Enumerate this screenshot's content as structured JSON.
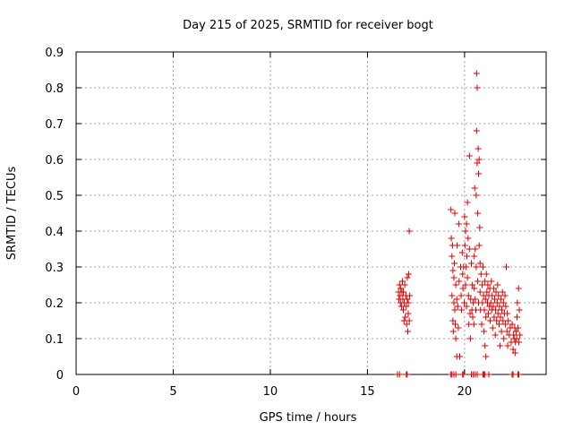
{
  "chart_data": {
    "type": "scatter",
    "title": "Day 215 of 2025, SRMTID for receiver bogt",
    "xlabel": "GPS time / hours",
    "ylabel": "SRMTID / TECUs",
    "xlim": [
      0,
      24.2
    ],
    "ylim": [
      0,
      0.9
    ],
    "xticks": [
      0,
      5,
      10,
      15,
      20
    ],
    "xtick_labels": [
      "0",
      "5",
      "10",
      "15",
      "20"
    ],
    "yticks": [
      0,
      0.1,
      0.2,
      0.3,
      0.4,
      0.5,
      0.6,
      0.7,
      0.8,
      0.9
    ],
    "ytick_labels": [
      "0",
      "0.1",
      "0.2",
      "0.3",
      "0.4",
      "0.5",
      "0.6",
      "0.7",
      "0.8",
      "0.9"
    ],
    "grid": true,
    "marker": "+",
    "color": "#e00000",
    "series": [
      {
        "name": "SRMTID",
        "points": [
          [
            16.55,
            0.0
          ],
          [
            16.65,
            0.0
          ],
          [
            17.0,
            0.0
          ],
          [
            17.05,
            0.0
          ],
          [
            19.3,
            0.0
          ],
          [
            19.35,
            0.0
          ],
          [
            19.45,
            0.0
          ],
          [
            19.55,
            0.0
          ],
          [
            19.9,
            0.0
          ],
          [
            19.95,
            0.0
          ],
          [
            20.35,
            0.0
          ],
          [
            20.45,
            0.0
          ],
          [
            20.55,
            0.0
          ],
          [
            20.65,
            0.0
          ],
          [
            20.95,
            0.0
          ],
          [
            21.0,
            0.0
          ],
          [
            21.05,
            0.0
          ],
          [
            21.25,
            0.0
          ],
          [
            22.45,
            0.0
          ],
          [
            22.5,
            0.0
          ],
          [
            22.75,
            0.0
          ],
          [
            22.8,
            0.0
          ],
          [
            16.6,
            0.23
          ],
          [
            16.62,
            0.21
          ],
          [
            16.65,
            0.25
          ],
          [
            16.68,
            0.22
          ],
          [
            16.7,
            0.2
          ],
          [
            16.72,
            0.24
          ],
          [
            16.75,
            0.19
          ],
          [
            16.78,
            0.23
          ],
          [
            16.8,
            0.26
          ],
          [
            16.82,
            0.21
          ],
          [
            16.85,
            0.18
          ],
          [
            16.85,
            0.23
          ],
          [
            16.88,
            0.15
          ],
          [
            16.9,
            0.2
          ],
          [
            16.92,
            0.25
          ],
          [
            16.95,
            0.16
          ],
          [
            16.98,
            0.22
          ],
          [
            17.0,
            0.19
          ],
          [
            17.02,
            0.14
          ],
          [
            17.05,
            0.21
          ],
          [
            17.05,
            0.27
          ],
          [
            17.08,
            0.12
          ],
          [
            17.1,
            0.17
          ],
          [
            17.1,
            0.2
          ],
          [
            17.12,
            0.28
          ],
          [
            17.15,
            0.15
          ],
          [
            17.15,
            0.4
          ],
          [
            17.18,
            0.22
          ],
          [
            19.3,
            0.46
          ],
          [
            19.32,
            0.38
          ],
          [
            19.35,
            0.33
          ],
          [
            19.35,
            0.22
          ],
          [
            19.38,
            0.36
          ],
          [
            19.4,
            0.29
          ],
          [
            19.4,
            0.15
          ],
          [
            19.42,
            0.12
          ],
          [
            19.45,
            0.27
          ],
          [
            19.45,
            0.2
          ],
          [
            19.48,
            0.31
          ],
          [
            19.5,
            0.18
          ],
          [
            19.5,
            0.45
          ],
          [
            19.52,
            0.14
          ],
          [
            19.55,
            0.25
          ],
          [
            19.55,
            0.1
          ],
          [
            19.6,
            0.05
          ],
          [
            19.6,
            0.21
          ],
          [
            19.62,
            0.36
          ],
          [
            19.65,
            0.19
          ],
          [
            19.68,
            0.13
          ],
          [
            19.7,
            0.42
          ],
          [
            19.72,
            0.26
          ],
          [
            19.75,
            0.05
          ],
          [
            19.8,
            0.3
          ],
          [
            19.82,
            0.22
          ],
          [
            19.85,
            0.18
          ],
          [
            19.88,
            0.34
          ],
          [
            19.9,
            0.28
          ],
          [
            19.92,
            0.24
          ],
          [
            19.95,
            0.3
          ],
          [
            19.98,
            0.2
          ],
          [
            20.0,
            0.44
          ],
          [
            20.02,
            0.36
          ],
          [
            20.05,
            0.4
          ],
          [
            20.05,
            0.25
          ],
          [
            20.08,
            0.3
          ],
          [
            20.1,
            0.42
          ],
          [
            20.1,
            0.19
          ],
          [
            20.12,
            0.33
          ],
          [
            20.15,
            0.48
          ],
          [
            20.15,
            0.27
          ],
          [
            20.18,
            0.38
          ],
          [
            20.2,
            0.22
          ],
          [
            20.22,
            0.14
          ],
          [
            20.25,
            0.35
          ],
          [
            20.25,
            0.61
          ],
          [
            20.28,
            0.17
          ],
          [
            20.3,
            0.1
          ],
          [
            20.32,
            0.21
          ],
          [
            20.35,
            0.31
          ],
          [
            20.38,
            0.18
          ],
          [
            20.4,
            0.25
          ],
          [
            20.42,
            0.16
          ],
          [
            20.45,
            0.2
          ],
          [
            20.48,
            0.14
          ],
          [
            20.5,
            0.33
          ],
          [
            20.5,
            0.24
          ],
          [
            20.52,
            0.52
          ],
          [
            20.55,
            0.35
          ],
          [
            20.55,
            0.21
          ],
          [
            20.58,
            0.18
          ],
          [
            20.6,
            0.5
          ],
          [
            20.6,
            0.3
          ],
          [
            20.62,
            0.68
          ],
          [
            20.62,
            0.84
          ],
          [
            20.65,
            0.8
          ],
          [
            20.65,
            0.59
          ],
          [
            20.68,
            0.45
          ],
          [
            20.68,
            0.26
          ],
          [
            20.7,
            0.63
          ],
          [
            20.72,
            0.56
          ],
          [
            20.72,
            0.2
          ],
          [
            20.75,
            0.6
          ],
          [
            20.75,
            0.36
          ],
          [
            20.78,
            0.41
          ],
          [
            20.8,
            0.31
          ],
          [
            20.8,
            0.23
          ],
          [
            20.82,
            0.18
          ],
          [
            20.85,
            0.28
          ],
          [
            20.88,
            0.14
          ],
          [
            20.9,
            0.25
          ],
          [
            20.92,
            0.2
          ],
          [
            20.95,
            0.3
          ],
          [
            20.98,
            0.22
          ],
          [
            21.0,
            0.12
          ],
          [
            21.02,
            0.18
          ],
          [
            21.05,
            0.26
          ],
          [
            21.05,
            0.08
          ],
          [
            21.08,
            0.21
          ],
          [
            21.1,
            0.05
          ],
          [
            21.1,
            0.16
          ],
          [
            21.12,
            0.28
          ],
          [
            21.15,
            0.23
          ],
          [
            21.18,
            0.2
          ],
          [
            21.2,
            0.25
          ],
          [
            21.22,
            0.17
          ],
          [
            21.25,
            0.22
          ],
          [
            21.28,
            0.19
          ],
          [
            21.3,
            0.24
          ],
          [
            21.32,
            0.15
          ],
          [
            21.35,
            0.2
          ],
          [
            21.38,
            0.26
          ],
          [
            21.4,
            0.18
          ],
          [
            21.42,
            0.22
          ],
          [
            21.45,
            0.13
          ],
          [
            21.48,
            0.19
          ],
          [
            21.5,
            0.24
          ],
          [
            21.52,
            0.16
          ],
          [
            21.55,
            0.21
          ],
          [
            21.58,
            0.11
          ],
          [
            21.6,
            0.18
          ],
          [
            21.62,
            0.23
          ],
          [
            21.65,
            0.15
          ],
          [
            21.68,
            0.2
          ],
          [
            21.7,
            0.25
          ],
          [
            21.72,
            0.17
          ],
          [
            21.75,
            0.22
          ],
          [
            21.78,
            0.14
          ],
          [
            21.8,
            0.19
          ],
          [
            21.82,
            0.08
          ],
          [
            21.85,
            0.16
          ],
          [
            21.88,
            0.21
          ],
          [
            21.9,
            0.12
          ],
          [
            21.92,
            0.18
          ],
          [
            21.95,
            0.23
          ],
          [
            21.98,
            0.15
          ],
          [
            22.0,
            0.2
          ],
          [
            22.02,
            0.1
          ],
          [
            22.05,
            0.17
          ],
          [
            22.08,
            0.22
          ],
          [
            22.1,
            0.14
          ],
          [
            22.12,
            0.19
          ],
          [
            22.15,
            0.3
          ],
          [
            22.18,
            0.12
          ],
          [
            22.2,
            0.17
          ],
          [
            22.22,
            0.08
          ],
          [
            22.25,
            0.15
          ],
          [
            22.3,
            0.11
          ],
          [
            22.35,
            0.13
          ],
          [
            22.4,
            0.09
          ],
          [
            22.45,
            0.14
          ],
          [
            22.5,
            0.07
          ],
          [
            22.52,
            0.11
          ],
          [
            22.55,
            0.1
          ],
          [
            22.58,
            0.13
          ],
          [
            22.6,
            0.06
          ],
          [
            22.62,
            0.09
          ],
          [
            22.65,
            0.12
          ],
          [
            22.68,
            0.1
          ],
          [
            22.7,
            0.16
          ],
          [
            22.72,
            0.2
          ],
          [
            22.75,
            0.13
          ],
          [
            22.78,
            0.24
          ],
          [
            22.8,
            0.09
          ],
          [
            22.82,
            0.18
          ],
          [
            22.85,
            0.11
          ]
        ]
      }
    ]
  }
}
